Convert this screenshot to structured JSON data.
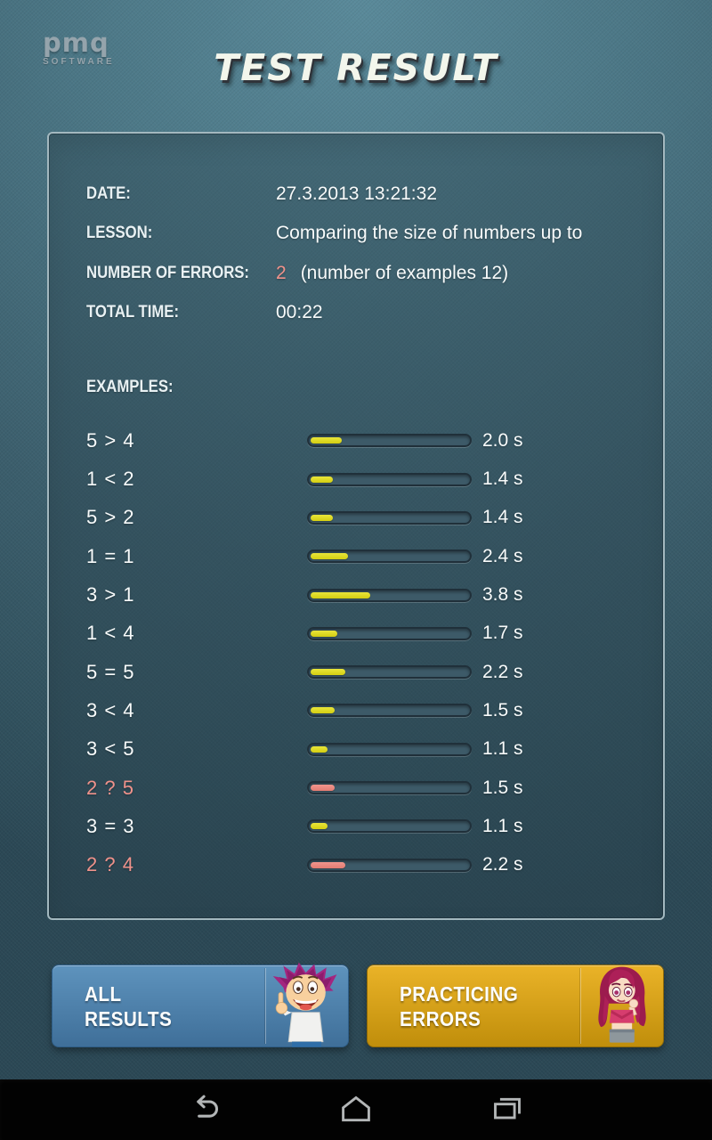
{
  "header": {
    "logo": {
      "brand": "pmq",
      "subtitle": "SOFTWARE"
    },
    "title": "TEST RESULT"
  },
  "summary": {
    "date": {
      "label": "DATE:",
      "value": "27.3.2013 13:21:32"
    },
    "lesson": {
      "label": "LESSON:",
      "value": "Comparing the size of numbers up to"
    },
    "errors": {
      "label": "NUMBER OF ERRORS:",
      "count": "2",
      "note": "(number of examples 12)"
    },
    "total_time": {
      "label": "TOTAL TIME:",
      "value": "00:22"
    }
  },
  "examples": {
    "label": "EXAMPLES:",
    "time_scale_max_seconds": 10,
    "items": [
      {
        "equation": "5 > 4",
        "time": "2.0 s",
        "seconds": 2.0,
        "error": false
      },
      {
        "equation": "1 < 2",
        "time": "1.4 s",
        "seconds": 1.4,
        "error": false
      },
      {
        "equation": "5 > 2",
        "time": "1.4 s",
        "seconds": 1.4,
        "error": false
      },
      {
        "equation": "1 = 1",
        "time": "2.4 s",
        "seconds": 2.4,
        "error": false
      },
      {
        "equation": "3 > 1",
        "time": "3.8 s",
        "seconds": 3.8,
        "error": false
      },
      {
        "equation": "1 < 4",
        "time": "1.7 s",
        "seconds": 1.7,
        "error": false
      },
      {
        "equation": "5 = 5",
        "time": "2.2 s",
        "seconds": 2.2,
        "error": false
      },
      {
        "equation": "3 < 4",
        "time": "1.5 s",
        "seconds": 1.5,
        "error": false
      },
      {
        "equation": "3 < 5",
        "time": "1.1 s",
        "seconds": 1.1,
        "error": false
      },
      {
        "equation": "2 ? 5",
        "time": "1.5 s",
        "seconds": 1.5,
        "error": true
      },
      {
        "equation": "3 = 3",
        "time": "1.1 s",
        "seconds": 1.1,
        "error": false
      },
      {
        "equation": "2 ? 4",
        "time": "2.2 s",
        "seconds": 2.2,
        "error": true
      }
    ]
  },
  "buttons": {
    "all_results": {
      "line1": "ALL",
      "line2": "RESULTS",
      "character_icon": "boy-pointing-up-icon"
    },
    "practicing_errors": {
      "line1": "PRACTICING",
      "line2": "ERRORS",
      "character_icon": "girl-thinking-icon"
    }
  },
  "navbar": {
    "back_icon": "back-icon",
    "home_icon": "home-icon",
    "recents_icon": "recents-icon"
  },
  "colors": {
    "bar_ok": "#d3ce12",
    "bar_error": "#e47c72",
    "error_text": "#ef928b",
    "button_blue": "#4e86b4",
    "button_gold": "#dca118",
    "background_teal": "#46717f"
  }
}
